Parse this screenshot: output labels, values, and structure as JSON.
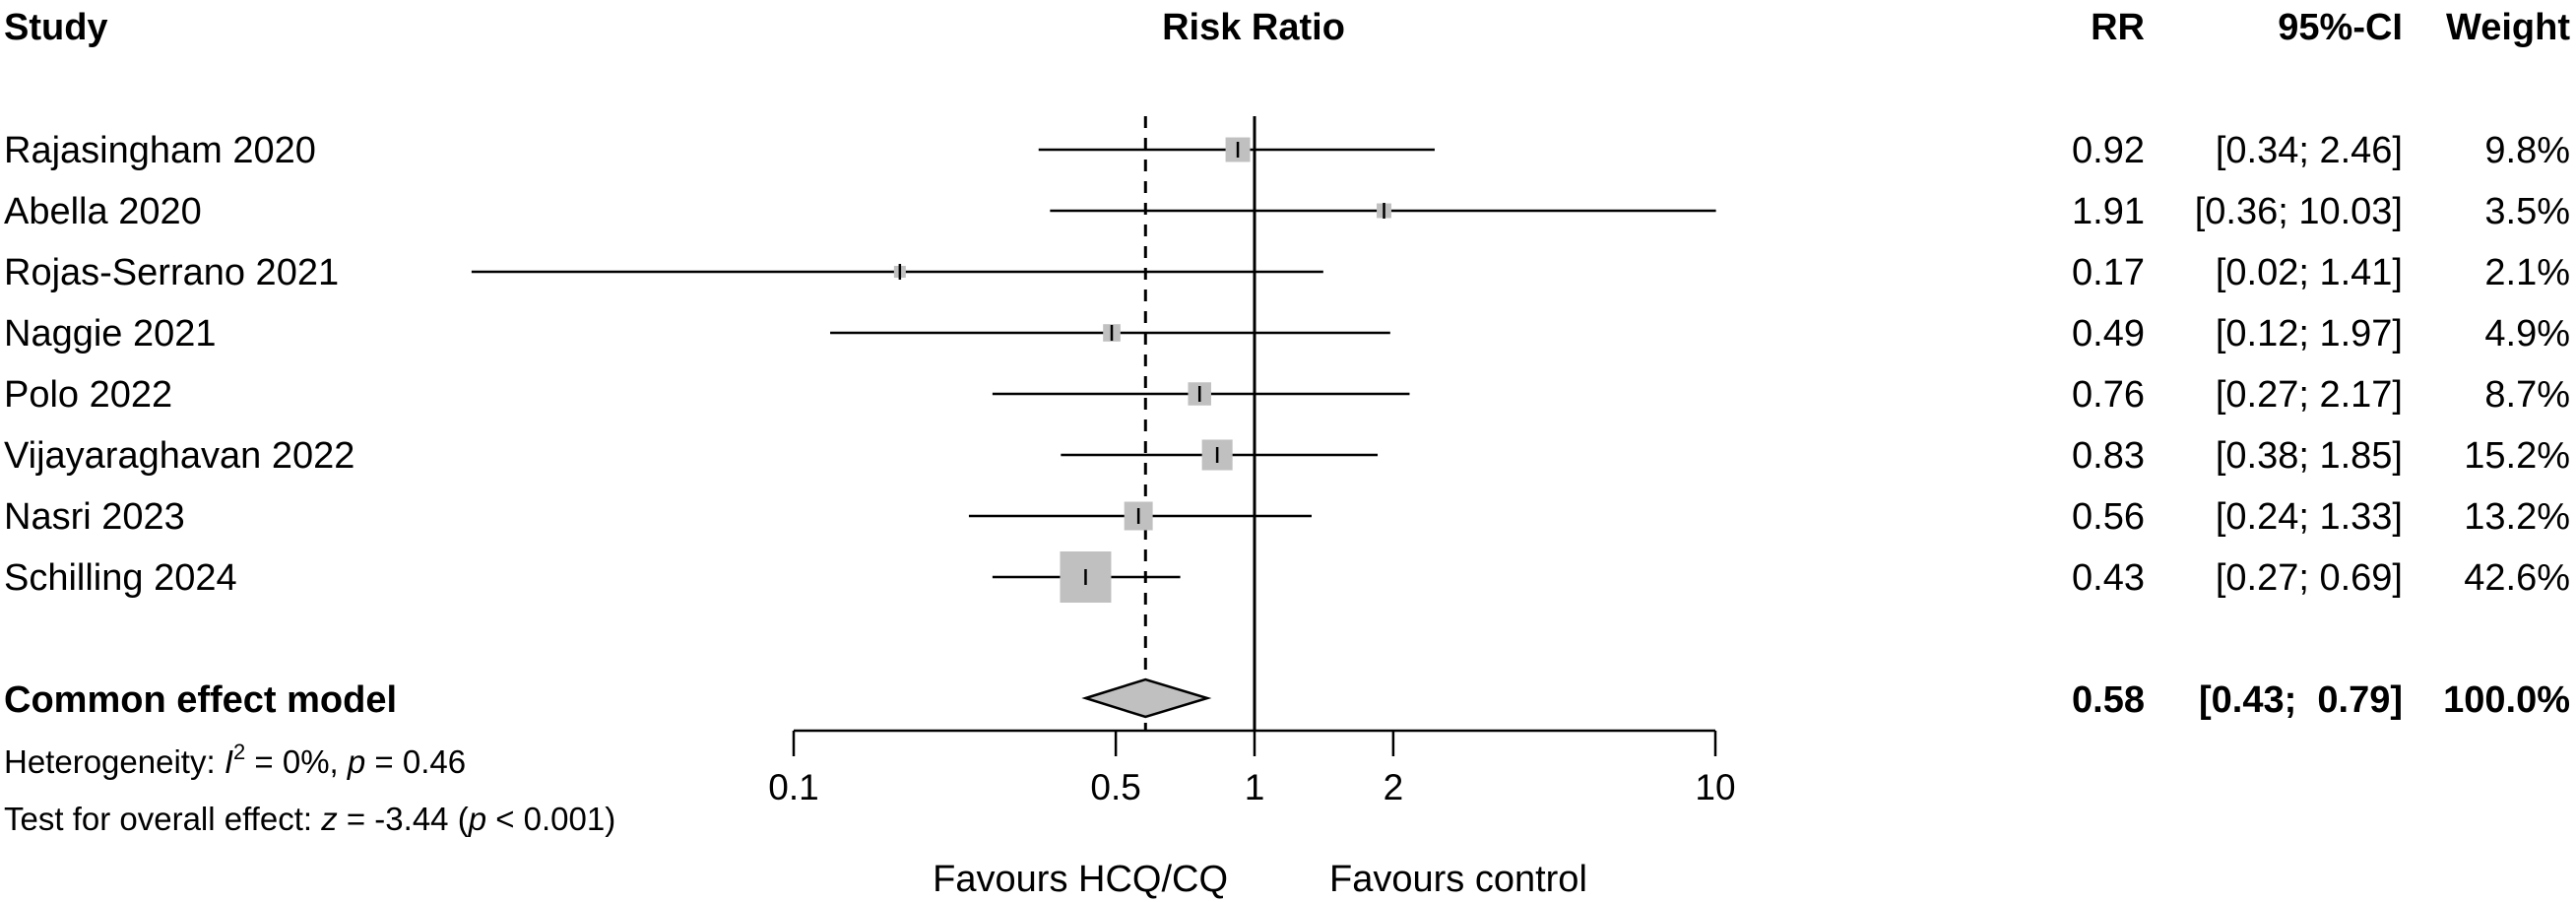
{
  "chart_data": {
    "type": "forest",
    "headers": {
      "study": "Study",
      "plot": "Risk Ratio",
      "rr": "RR",
      "ci": "95%-CI",
      "weight": "Weight"
    },
    "xscale": "log",
    "xlim": [
      0.1,
      10
    ],
    "ticks": [
      {
        "value": 0.1,
        "label": "0.1"
      },
      {
        "value": 0.5,
        "label": "0.5"
      },
      {
        "value": 1,
        "label": "1"
      },
      {
        "value": 2,
        "label": "2"
      },
      {
        "value": 10,
        "label": "10"
      }
    ],
    "null_value": 1,
    "studies": [
      {
        "name": "Rajasingham 2020",
        "rr": 0.92,
        "lower": 0.34,
        "upper": 2.46,
        "weight": 9.8,
        "rr_text": "0.92",
        "ci_text": "[0.34;  2.46]",
        "weight_text": "9.8%"
      },
      {
        "name": "Abella 2020",
        "rr": 1.91,
        "lower": 0.36,
        "upper": 10.03,
        "weight": 3.5,
        "rr_text": "1.91",
        "ci_text": "[0.36; 10.03]",
        "weight_text": "3.5%"
      },
      {
        "name": "Rojas-Serrano 2021",
        "rr": 0.17,
        "lower": 0.02,
        "upper": 1.41,
        "weight": 2.1,
        "rr_text": "0.17",
        "ci_text": "[0.02;  1.41]",
        "weight_text": "2.1%"
      },
      {
        "name": "Naggie 2021",
        "rr": 0.49,
        "lower": 0.12,
        "upper": 1.97,
        "weight": 4.9,
        "rr_text": "0.49",
        "ci_text": "[0.12;  1.97]",
        "weight_text": "4.9%"
      },
      {
        "name": "Polo 2022",
        "rr": 0.76,
        "lower": 0.27,
        "upper": 2.17,
        "weight": 8.7,
        "rr_text": "0.76",
        "ci_text": "[0.27;  2.17]",
        "weight_text": "8.7%"
      },
      {
        "name": "Vijayaraghavan 2022",
        "rr": 0.83,
        "lower": 0.38,
        "upper": 1.85,
        "weight": 15.2,
        "rr_text": "0.83",
        "ci_text": "[0.38;  1.85]",
        "weight_text": "15.2%"
      },
      {
        "name": "Nasri 2023",
        "rr": 0.56,
        "lower": 0.24,
        "upper": 1.33,
        "weight": 13.2,
        "rr_text": "0.56",
        "ci_text": "[0.24;  1.33]",
        "weight_text": "13.2%"
      },
      {
        "name": "Schilling 2024",
        "rr": 0.43,
        "lower": 0.27,
        "upper": 0.69,
        "weight": 42.6,
        "rr_text": "0.43",
        "ci_text": "[0.27;  0.69]",
        "weight_text": "42.6%"
      }
    ],
    "pooled": {
      "name": "Common effect model",
      "rr": 0.58,
      "lower": 0.43,
      "upper": 0.79,
      "rr_text": "0.58",
      "ci_text": "[0.43;  0.79]",
      "weight_text": "100.0%"
    },
    "heterogeneity": {
      "prefix": "Heterogeneity: ",
      "i": "I",
      "sup": "2",
      "mid": " = 0%, ",
      "p": "p",
      "tail": " = 0.46"
    },
    "overall_test": {
      "prefix": "Test for overall effect: ",
      "z": "z",
      "mid": " = -3.44 (",
      "p": "p",
      "tail": " < 0.001)"
    },
    "favours_left": "Favours HCQ/CQ",
    "favours_right": "Favours control"
  }
}
